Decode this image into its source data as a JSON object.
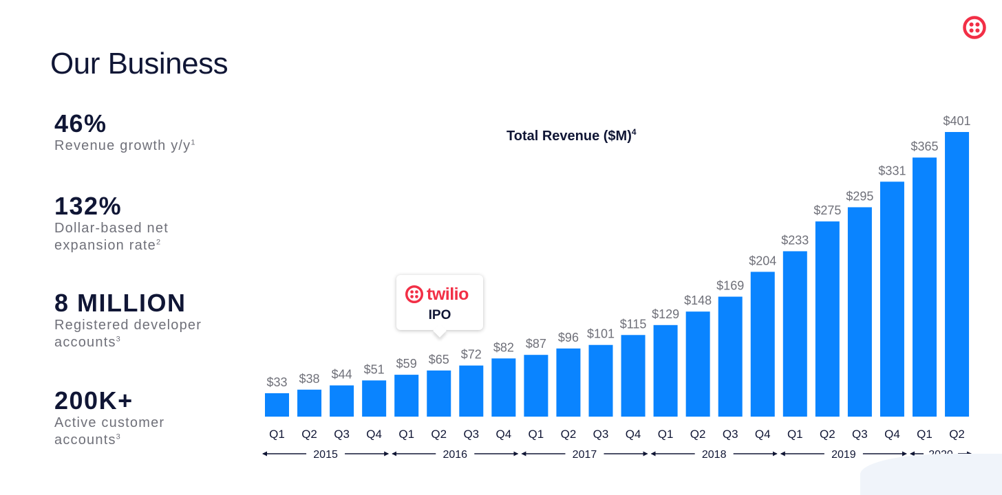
{
  "page": {
    "title": "Our Business",
    "brand_name": "twilio",
    "brand_color": "#f22f46",
    "logo_icon": "twilio-logo-icon"
  },
  "stats": [
    {
      "value": "46%",
      "label": "Revenue growth y/y",
      "footnote": "1"
    },
    {
      "value": "132%",
      "label_lines": [
        "Dollar-based net",
        "expansion rate"
      ],
      "footnote": "2"
    },
    {
      "value": "8 MILLION",
      "label_lines": [
        "Registered developer",
        "accounts"
      ],
      "footnote": "3"
    },
    {
      "value": "200K+",
      "label_lines": [
        "Active customer",
        "accounts"
      ],
      "footnote": "3"
    }
  ],
  "callout": {
    "brand": "twilio",
    "text": "IPO",
    "anchor_index": 5
  },
  "chart_data": {
    "type": "bar",
    "title": "Total Revenue ($M)",
    "title_footnote": "4",
    "categories": [
      "Q1",
      "Q2",
      "Q3",
      "Q4",
      "Q1",
      "Q2",
      "Q3",
      "Q4",
      "Q1",
      "Q2",
      "Q3",
      "Q4",
      "Q1",
      "Q2",
      "Q3",
      "Q4",
      "Q1",
      "Q2",
      "Q3",
      "Q4",
      "Q1",
      "Q2"
    ],
    "years": [
      {
        "label": "2015",
        "count": 4
      },
      {
        "label": "2016",
        "count": 4
      },
      {
        "label": "2017",
        "count": 4
      },
      {
        "label": "2018",
        "count": 4
      },
      {
        "label": "2019",
        "count": 4
      },
      {
        "label": "2020",
        "count": 2
      }
    ],
    "values": [
      33,
      38,
      44,
      51,
      59,
      65,
      72,
      82,
      87,
      96,
      101,
      115,
      129,
      148,
      169,
      204,
      233,
      275,
      295,
      331,
      365,
      401
    ],
    "value_labels": [
      "$33",
      "$38",
      "$44",
      "$51",
      "$59",
      "$65",
      "$72",
      "$82",
      "$87",
      "$96",
      "$101",
      "$115",
      "$129",
      "$148",
      "$169",
      "$204",
      "$233",
      "$275",
      "$295",
      "$331",
      "$365",
      "$401"
    ],
    "ylim": [
      0,
      401
    ],
    "bar_color": "#0a84ff",
    "grid": false
  }
}
